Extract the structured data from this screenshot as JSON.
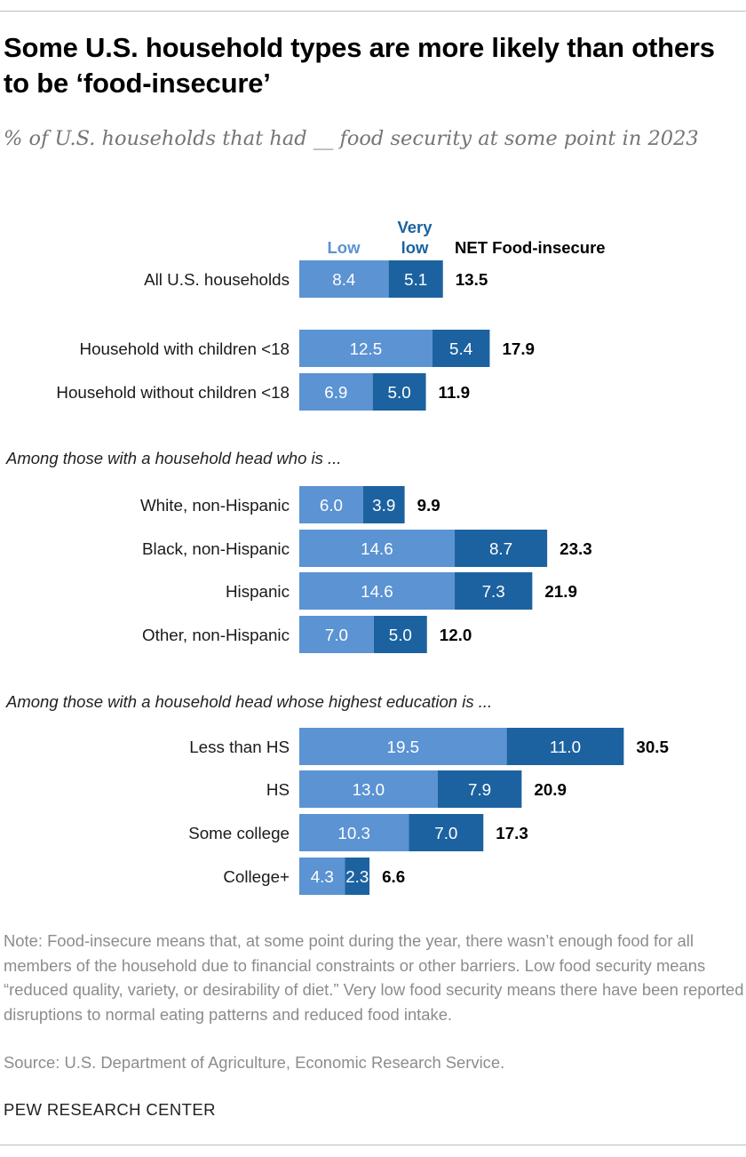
{
  "title": "Some U.S. household types are more likely than others to be ‘food-insecure’",
  "subtitle": "% of U.S. households that had __ food security at some point in 2023",
  "note": "Note: Food-insecure means that, at some point during the year, there wasn’t enough food for all members of the household due to financial constraints or other barriers. Low food security means “reduced quality, variety, or desirability of diet.” Very low food security means there have been reported disruptions to normal eating patterns and reduced food intake.",
  "source": "Source: U.S. Department of Agriculture, Economic Research Service.",
  "brand": "PEW RESEARCH CENTER",
  "colors": {
    "low": "#5b93d3",
    "very_low": "#1c62a0",
    "header_low": "#5b93d3",
    "header_very_low": "#1c62a0"
  },
  "chart_data": {
    "type": "bar",
    "orientation": "horizontal",
    "stacked": true,
    "headers": {
      "low": "Low",
      "very_low_line1": "Very",
      "very_low_line2": "low",
      "net": "NET Food-insecure"
    },
    "series": [
      {
        "name": "Low",
        "values": [
          8.4,
          12.5,
          6.9,
          6.0,
          14.6,
          14.6,
          7.0,
          19.5,
          13.0,
          10.3,
          4.3
        ]
      },
      {
        "name": "Very low",
        "values": [
          5.1,
          5.4,
          5.0,
          3.9,
          8.7,
          7.3,
          5.0,
          11.0,
          7.9,
          7.0,
          2.3
        ]
      }
    ],
    "categories": [
      "All U.S. households",
      "Household with children <18",
      "Household without children <18",
      "White, non-Hispanic",
      "Black, non-Hispanic",
      "Hispanic",
      "Other, non-Hispanic",
      "Less than HS",
      "HS",
      "Some college",
      "College+"
    ],
    "low_labels": [
      "8.4",
      "12.5",
      "6.9",
      "6.0",
      "14.6",
      "14.6",
      "7.0",
      "19.5",
      "13.0",
      "10.3",
      "4.3"
    ],
    "very_low_labels": [
      "5.1",
      "5.4",
      "5.0",
      "3.9",
      "8.7",
      "7.3",
      "5.0",
      "11.0",
      "7.9",
      "7.0",
      "2.3"
    ],
    "net_values": [
      13.5,
      17.9,
      11.9,
      9.9,
      23.3,
      21.9,
      12.0,
      30.5,
      20.9,
      17.3,
      6.6
    ],
    "net_labels": [
      "13.5",
      "17.9",
      "11.9",
      "9.9",
      "23.3",
      "21.9",
      "12.0",
      "30.5",
      "20.9",
      "17.3",
      "6.6"
    ],
    "section_headers": [
      "Among those with a household head who is ...",
      "Among those with a household head whose highest education is ..."
    ],
    "xlim": [
      0,
      30.5
    ]
  }
}
